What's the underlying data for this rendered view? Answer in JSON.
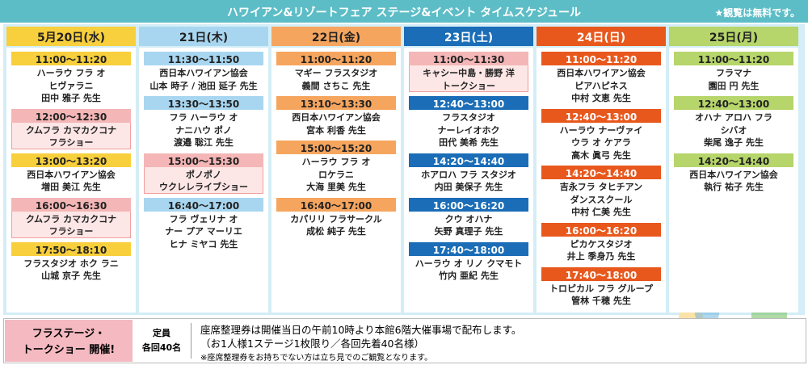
{
  "header": {
    "title": "ハワイアン&リゾートフェア ステージ&イベント タイムスケジュール",
    "note": "★観覧は無料です。"
  },
  "days": [
    {
      "label": "5月20日(水)",
      "color": "#f8cf3c",
      "text_color": "#222",
      "events": [
        {
          "time": "11:00～11:20",
          "lines": [
            "ハーラウ フラ オ",
            "ヒヴァラニ",
            "田中 雅子 先生"
          ]
        },
        {
          "time": "12:00～12:30",
          "highlight": true,
          "lines": [
            "クムフラ カマカクコナ",
            "フラショー"
          ]
        },
        {
          "time": "13:00～13:20",
          "lines": [
            "西日本ハワイアン協会",
            "増田 美江 先生"
          ]
        },
        {
          "time": "16:00～16:30",
          "highlight": true,
          "lines": [
            "クムフラ カマカクコナ",
            "フラショー"
          ]
        },
        {
          "time": "17:50～18:10",
          "lines": [
            "フラスタジオ ホク ラニ",
            "山城 京子 先生"
          ]
        }
      ]
    },
    {
      "label": "21日(木)",
      "color": "#a8d6f0",
      "text_color": "#222",
      "events": [
        {
          "time": "11:30～11:50",
          "lines": [
            "西日本ハワイアン協会",
            "山本 時子 / 池田 延子 先生"
          ]
        },
        {
          "time": "13:30～13:50",
          "lines": [
            "フラ ハーラウ オ",
            "ナニハウ ポノ",
            "渡邉 聡江 先生"
          ]
        },
        {
          "time": "15:00～15:30",
          "highlight": true,
          "lines": [
            "ポノポノ",
            "ウクレレライブショー"
          ]
        },
        {
          "time": "16:40～17:00",
          "lines": [
            "フラ ヴェリナ オ",
            "ナー プア マーリエ",
            "ヒナ ミヤコ 先生"
          ]
        }
      ]
    },
    {
      "label": "22日(金)",
      "color": "#f6a55e",
      "text_color": "#222",
      "events": [
        {
          "time": "11:00～11:20",
          "lines": [
            "マギー フラスタジオ",
            "義間 さちこ 先生"
          ]
        },
        {
          "time": "13:10～13:30",
          "lines": [
            "西日本ハワイアン協会",
            "宮本 利香 先生"
          ]
        },
        {
          "time": "15:00～15:20",
          "lines": [
            "ハーラウ フラ オ",
            "ロケラニ",
            "大海 里美 先生"
          ]
        },
        {
          "time": "16:40～17:00",
          "lines": [
            "カパリリ フラサークル",
            "成松 純子 先生"
          ]
        }
      ]
    },
    {
      "label": "23日(土)",
      "color": "#1a6db6",
      "text_color": "#fff",
      "events": [
        {
          "time": "11:00～11:30",
          "highlight": true,
          "lines": [
            "キャシー中島・勝野 洋",
            "トークショー"
          ]
        },
        {
          "time": "12:40～13:00",
          "lines": [
            "フラスタジオ",
            "ナーレイオホク",
            "田代 美希 先生"
          ]
        },
        {
          "time": "14:20～14:40",
          "lines": [
            "ホアロハ フラ スタジオ",
            "内田 美保子 先生"
          ]
        },
        {
          "time": "16:00～16:20",
          "lines": [
            "クウ オハナ",
            "矢野 真理子 先生"
          ]
        },
        {
          "time": "17:40～18:00",
          "lines": [
            "ハーラウ オ リノ クマモト",
            "竹内 亜紀 先生"
          ]
        }
      ]
    },
    {
      "label": "24日(日)",
      "color": "#e8581d",
      "text_color": "#fff",
      "events": [
        {
          "time": "11:00～11:20",
          "lines": [
            "西日本ハワイアン協会",
            "ピアハピネス",
            "中村 文恵 先生"
          ]
        },
        {
          "time": "12:40～13:00",
          "lines": [
            "ハーラウ ナーヴァイ",
            "ウラ オ ケアラ",
            "高木 眞弓 先生"
          ]
        },
        {
          "time": "14:20～14:40",
          "lines": [
            "吉永フラ タヒチアン",
            "ダンススクール",
            "中村 仁美 先生"
          ]
        },
        {
          "time": "16:00～16:20",
          "lines": [
            "ピカケスタジオ",
            "井上 季身乃 先生"
          ]
        },
        {
          "time": "17:40～18:00",
          "lines": [
            "トロピカル フラ グループ",
            "管林 千穂 先生"
          ]
        }
      ]
    },
    {
      "label": "25日(月)",
      "color": "#b6d56a",
      "text_color": "#222",
      "events": [
        {
          "time": "11:00～11:20",
          "lines": [
            "フラマナ",
            "園田 円 先生"
          ]
        },
        {
          "time": "12:40～13:00",
          "lines": [
            "オハナ アロハ フラ",
            "シバオ",
            "柴尾 逸子 先生"
          ]
        },
        {
          "time": "14:20～14:40",
          "lines": [
            "西日本ハワイアン協会",
            "執行 祐子 先生"
          ]
        }
      ]
    }
  ],
  "footer": {
    "label": [
      "フラステージ・",
      "トークショー 開催!"
    ],
    "capacity": [
      "定員",
      "各回40名"
    ],
    "notes": [
      "座席整理券は開催当日の午前10時より本館6階大催事場で配布します。",
      "（お1人様1ステージ1枚限り／各回先着40名様）",
      "※座席整理券をお持ちでない方は立ち見でのご観覧となります。"
    ]
  }
}
